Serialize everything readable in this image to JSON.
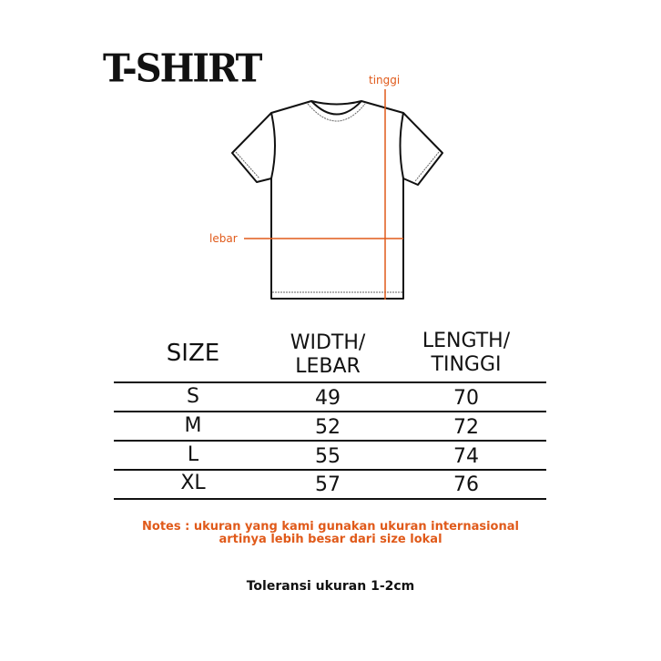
{
  "title": "T-SHIRT",
  "diagram": {
    "height_label": "tinggi",
    "width_label": "lebar",
    "accent_color": "#e05a1a"
  },
  "table": {
    "headers": {
      "size": "SIZE",
      "width_1": "WIDTH/",
      "width_2": "LEBAR",
      "length_1": "LENGTH/",
      "length_2": "TINGGI"
    },
    "rows": [
      {
        "size": "S",
        "width": "49",
        "length": "70"
      },
      {
        "size": "M",
        "width": "52",
        "length": "72"
      },
      {
        "size": "L",
        "width": "55",
        "length": "74"
      },
      {
        "size": "XL",
        "width": "57",
        "length": "76"
      }
    ]
  },
  "notes": {
    "line1": "Notes : ukuran yang kami gunakan ukuran internasional",
    "line2": "artinya lebih besar dari size lokal"
  },
  "tolerance": "Toleransi ukuran 1-2cm"
}
